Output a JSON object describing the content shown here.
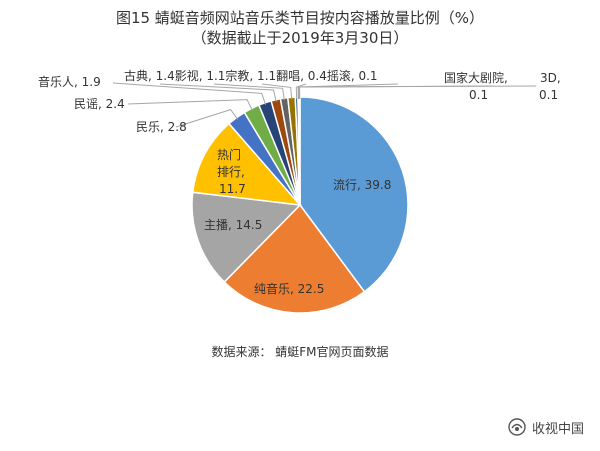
{
  "chart_data": {
    "type": "pie",
    "title": "图15  蜻蜓音频网站音乐类节目按内容播放量比例（%）",
    "subtitle": "（数据截止于2019年3月30日）",
    "slices": [
      {
        "label": "流行",
        "value": 39.8,
        "color": "#5b9bd5"
      },
      {
        "label": "纯音乐",
        "value": 22.5,
        "color": "#ed7d31"
      },
      {
        "label": "主播",
        "value": 14.5,
        "color": "#a5a5a5"
      },
      {
        "label": "热门排行",
        "value": 11.7,
        "color": "#ffc000"
      },
      {
        "label": "民乐",
        "value": 2.8,
        "color": "#4472c4"
      },
      {
        "label": "民谣",
        "value": 2.4,
        "color": "#70ad47"
      },
      {
        "label": "音乐人",
        "value": 1.9,
        "color": "#264478"
      },
      {
        "label": "古典",
        "value": 1.4,
        "color": "#9e480e"
      },
      {
        "label": "影视",
        "value": 1.1,
        "color": "#636363"
      },
      {
        "label": "宗教",
        "value": 1.1,
        "color": "#997300"
      },
      {
        "label": "翻唱",
        "value": 0.4,
        "color": "#255e91"
      },
      {
        "label": "摇滚",
        "value": 0.1,
        "color": "#43682b"
      },
      {
        "label": "国家大剧院",
        "value": 0.1,
        "color": "#698ed0"
      },
      {
        "label": "3D",
        "value": 0.1,
        "color": "#f1975a"
      }
    ],
    "labels": {
      "liuxing": "流行, 39.8",
      "chunyinyue": "纯音乐, 22.5",
      "zhubo": "主播, 14.5",
      "remen_line1": "热门",
      "remen_line2": "排行,",
      "remen_line3": "11.7",
      "minle": "民乐, 2.8",
      "minyao": "民谣, 2.4",
      "yinyueren": "音乐人, 1.9",
      "top_row": "古典, 1.4影视, 1.1宗教, 1.1翻唱, 0.4摇滚, 0.1",
      "guojia_line1": "国家大剧院,",
      "guojia_line2": "0.1",
      "sand_line1": "3D,",
      "sand_line2": "0.1"
    },
    "legend": "none"
  },
  "source": "数据来源：  蜻蜓FM官网页面数据",
  "watermark": {
    "text": "收视中国",
    "icon": "brand-logo-icon"
  }
}
